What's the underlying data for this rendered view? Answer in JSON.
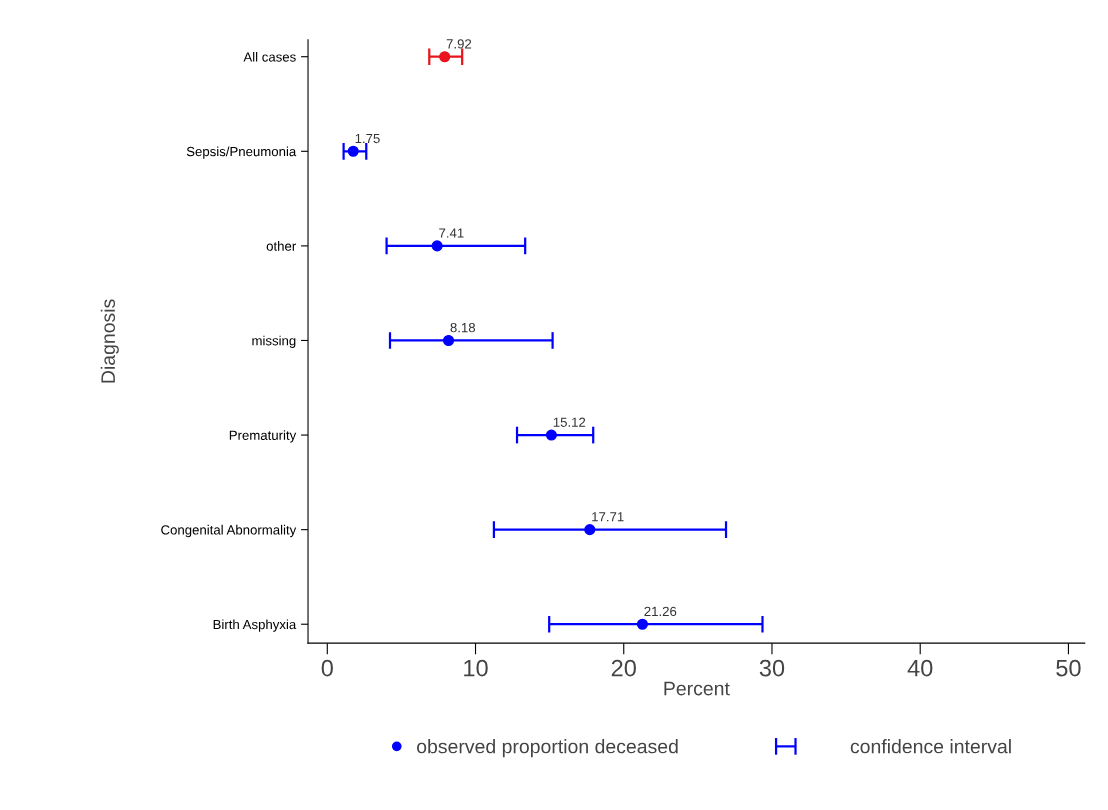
{
  "chart_data": {
    "type": "scatter",
    "orientation": "horizontal",
    "xlabel": "Percent",
    "ylabel": "Diagnosis",
    "categories": [
      "All cases",
      "Sepsis/Pneumonia",
      "other",
      "missing",
      "Prematurity",
      "Congenital Abnormality",
      "Birth Asphyxia"
    ],
    "series": [
      {
        "color": "#e8141e",
        "values": [
          7.92,
          null,
          null,
          null,
          null,
          null,
          null
        ],
        "errors": [
          [
            6.88,
            9.1
          ],
          null,
          null,
          null,
          null,
          null,
          null
        ]
      },
      {
        "name": "observed proportion deceased",
        "color": "#0000ff",
        "values": [
          null,
          1.75,
          7.41,
          8.18,
          15.12,
          17.71,
          21.26
        ],
        "errors": [
          null,
          [
            1.1,
            2.63
          ],
          [
            4.0,
            13.35
          ],
          [
            4.23,
            15.2
          ],
          [
            12.8,
            17.94
          ],
          [
            11.24,
            26.9
          ],
          [
            14.97,
            29.36
          ]
        ]
      }
    ],
    "annotations": [
      "confidence interval"
    ],
    "data_labels": true,
    "xlim": [
      -1.3,
      51.1
    ],
    "xticks": [
      0,
      10,
      20,
      30,
      40,
      50
    ],
    "grid": false,
    "legend": "bottom",
    "marker": "circle"
  }
}
